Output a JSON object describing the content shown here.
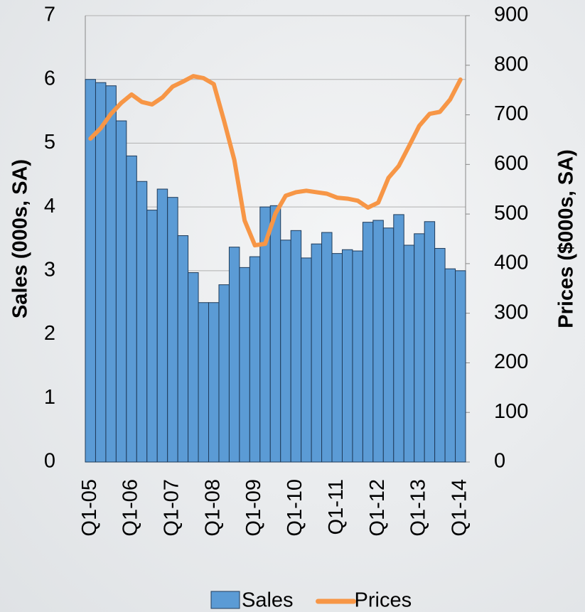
{
  "chart_data": {
    "type": "bar_line",
    "categories": [
      "Q1-05",
      null,
      null,
      null,
      "Q1-06",
      null,
      null,
      null,
      "Q1-07",
      null,
      null,
      null,
      "Q1-08",
      null,
      null,
      null,
      "Q1-09",
      null,
      null,
      null,
      "Q1-10",
      null,
      null,
      null,
      "Q1-11",
      null,
      null,
      null,
      "Q1-12",
      null,
      null,
      null,
      "Q1-13",
      null,
      null,
      null,
      "Q1-14"
    ],
    "series": [
      {
        "name": "Sales",
        "color": "#5b9bd5",
        "type": "bar",
        "axis": "y",
        "values": [
          6.0,
          5.95,
          5.9,
          5.35,
          4.8,
          4.4,
          3.95,
          4.28,
          4.15,
          3.55,
          2.97,
          2.5,
          2.5,
          2.78,
          3.37,
          3.05,
          3.22,
          4.0,
          4.02,
          3.48,
          3.63,
          3.2,
          3.42,
          3.6,
          3.27,
          3.33,
          3.31,
          3.76,
          3.79,
          3.67,
          3.88,
          3.4,
          3.58,
          3.77,
          3.35,
          3.03,
          3.0
        ]
      },
      {
        "name": "Prices",
        "color": "#f79646",
        "type": "line",
        "axis": "y2",
        "values": [
          652,
          673,
          702,
          724,
          741,
          726,
          721,
          735,
          757,
          767,
          778,
          774,
          762,
          688,
          609,
          487,
          437,
          440,
          501,
          537,
          544,
          547,
          544,
          541,
          533,
          531,
          527,
          513,
          523,
          573,
          597,
          637,
          678,
          702,
          706,
          731,
          771
        ]
      }
    ],
    "ylabel": "Sales (000s, SA)",
    "y2label": "Prices ($000s, SA)",
    "ylim": [
      0,
      7
    ],
    "yticks": [
      0,
      1,
      2,
      3,
      4,
      5,
      6,
      7
    ],
    "y2lim": [
      0,
      900
    ],
    "y2ticks": [
      0,
      100,
      200,
      300,
      400,
      500,
      600,
      700,
      800,
      900
    ],
    "grid": true,
    "legend": "bottom"
  }
}
